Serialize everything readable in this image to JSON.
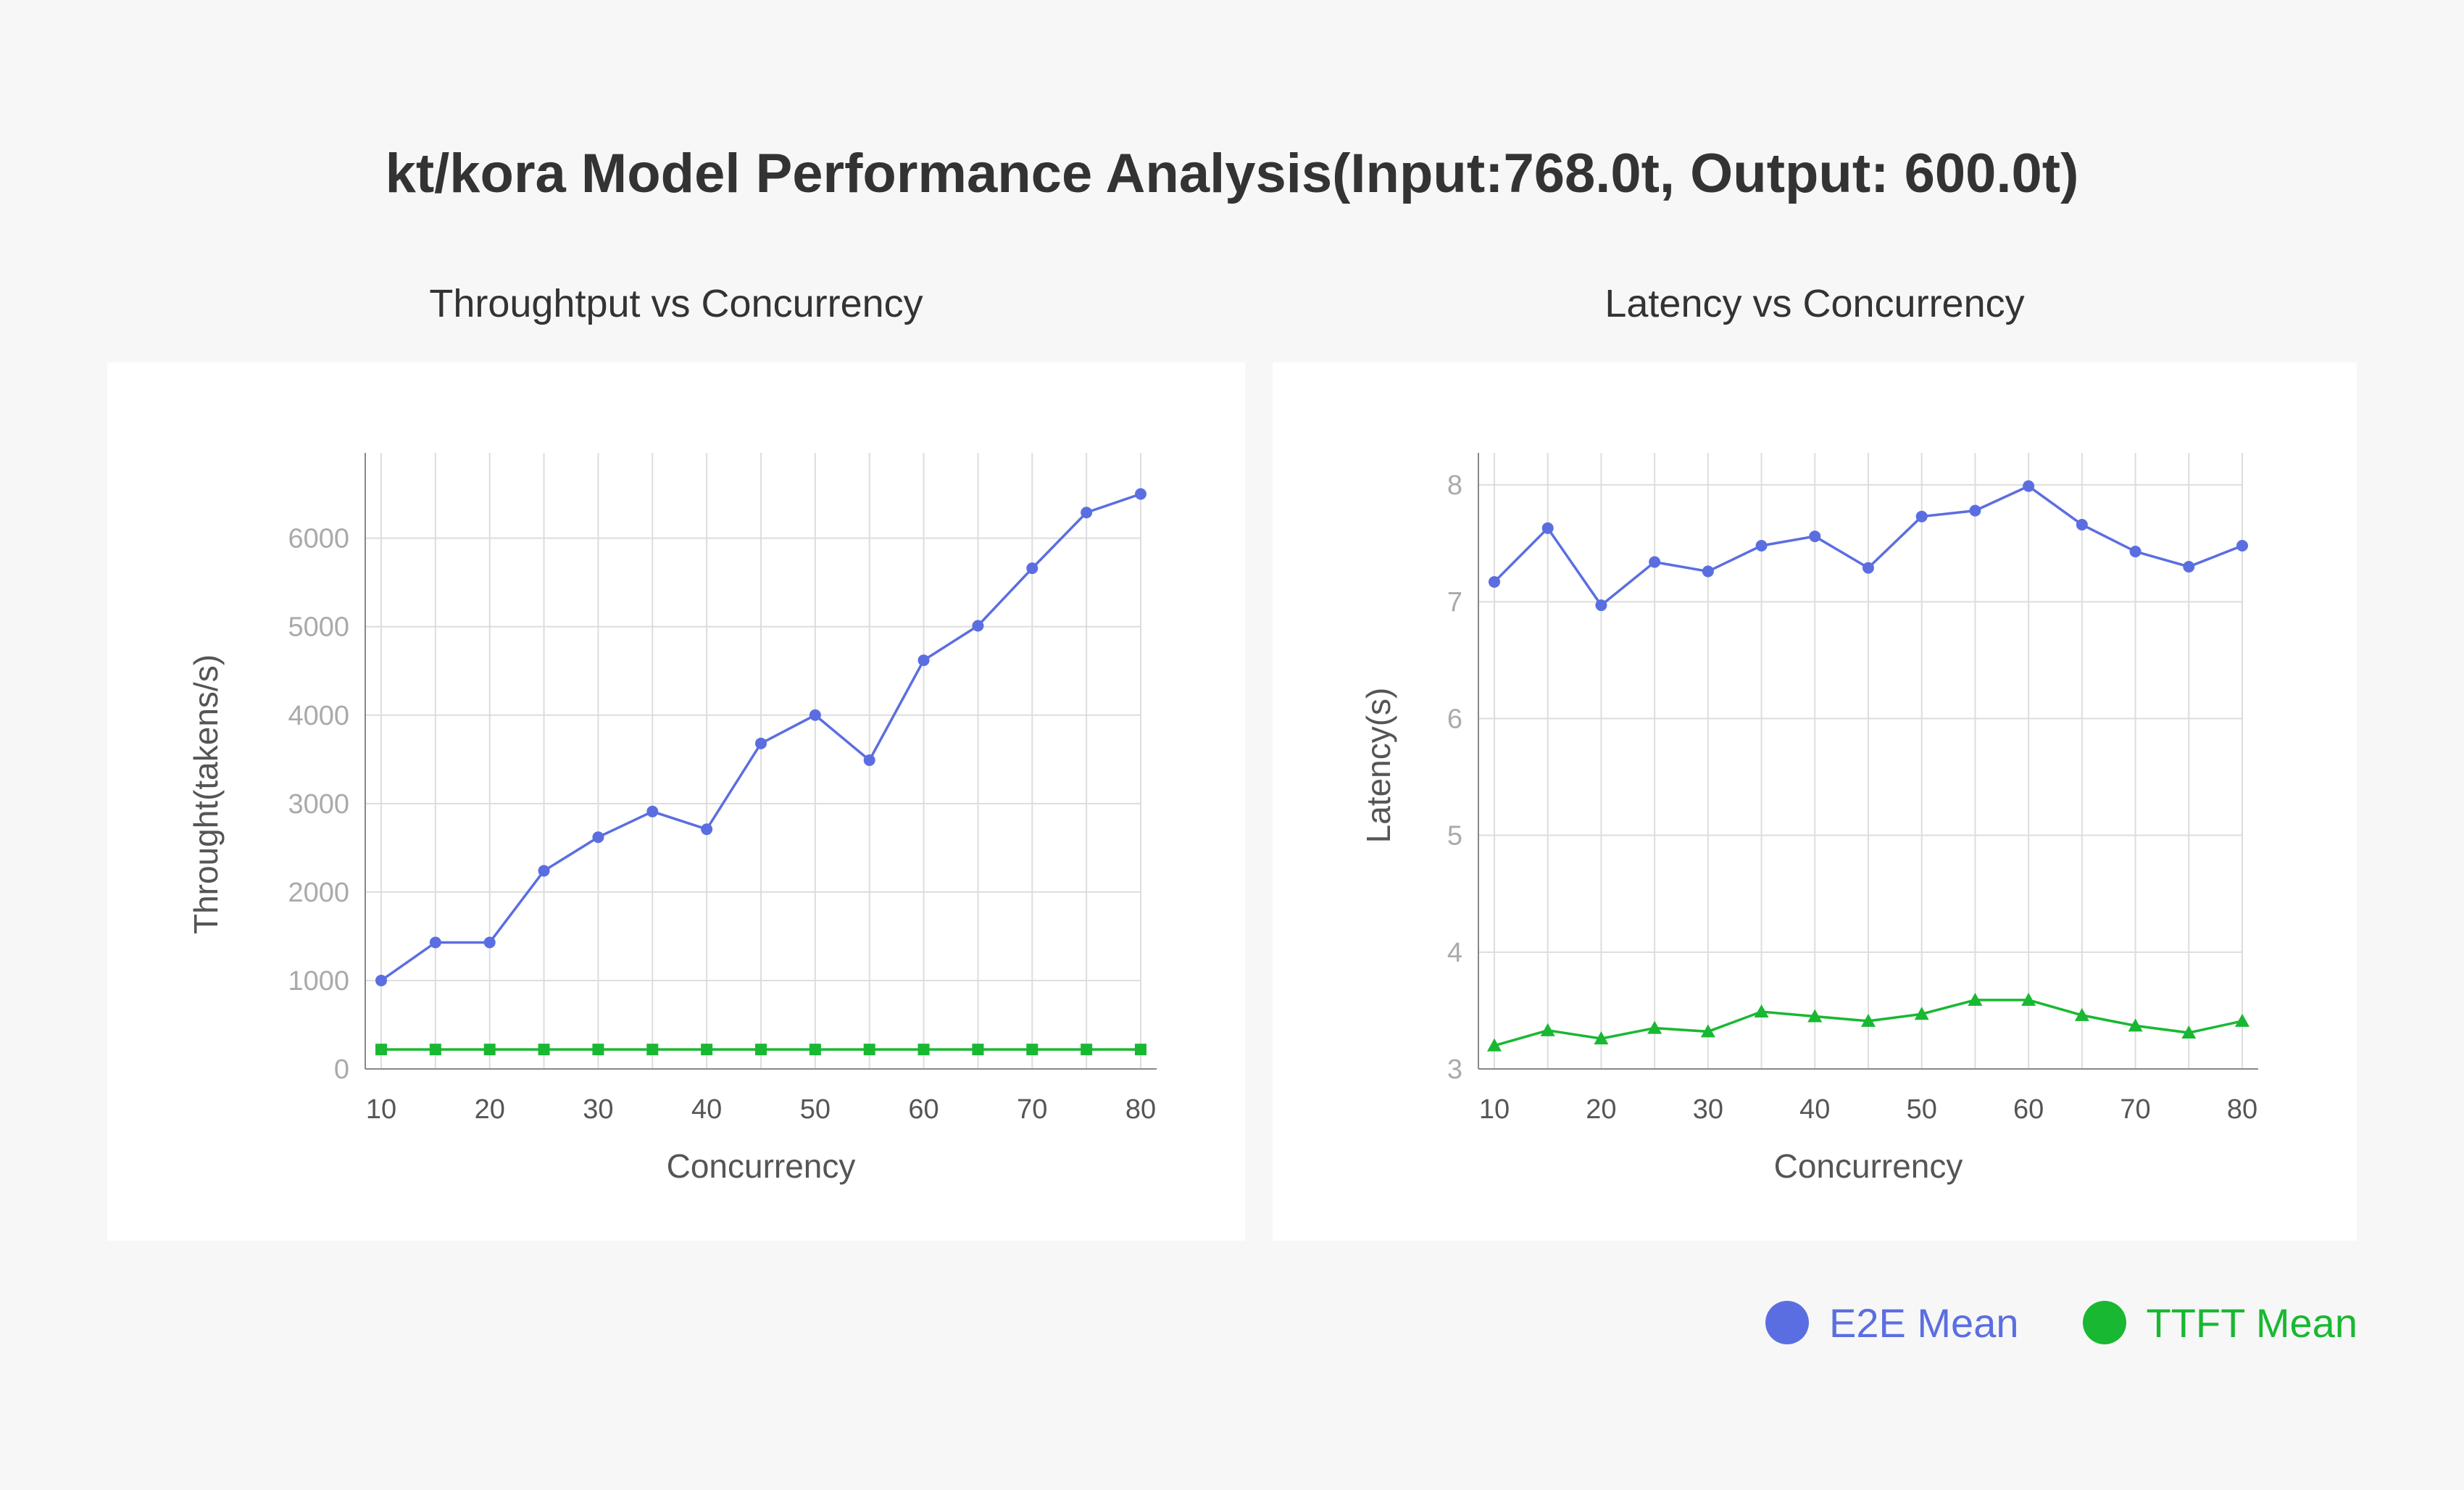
{
  "title": "kt/kora Model Performance Analysis(Input:768.0t, Output: 600.0t)",
  "colors": {
    "e2e": "#5b6ee1",
    "ttft": "#19b832"
  },
  "legend": [
    {
      "label": "E2E Mean",
      "color": "#5b6ee1"
    },
    {
      "label": "TTFT Mean",
      "color": "#19b832"
    }
  ],
  "chart_data": [
    {
      "type": "line",
      "title": "Throughtput vs Concurrency",
      "xlabel": "Concurrency",
      "ylabel": "Throught(takens/s)",
      "x": [
        10,
        15,
        20,
        25,
        30,
        35,
        40,
        45,
        50,
        55,
        60,
        65,
        70,
        75,
        80
      ],
      "xticks": [
        10,
        20,
        30,
        40,
        50,
        60,
        70,
        80
      ],
      "yticks": [
        0,
        1000,
        2000,
        3000,
        4000,
        5000,
        6000
      ],
      "ylim": [
        0,
        6800
      ],
      "grid": true,
      "series": [
        {
          "name": "E2E Mean",
          "marker": "circle",
          "color": "#5b6ee1",
          "values": [
            1000,
            1430,
            1430,
            2240,
            2620,
            2910,
            2710,
            3680,
            4000,
            3490,
            4620,
            5010,
            5660,
            6290,
            6500
          ]
        },
        {
          "name": "TTFT Mean",
          "marker": "square",
          "color": "#19b832",
          "values": [
            220,
            220,
            220,
            220,
            220,
            220,
            220,
            220,
            220,
            220,
            220,
            220,
            220,
            220,
            220
          ]
        }
      ]
    },
    {
      "type": "line",
      "title": "Latency vs Concurrency",
      "xlabel": "Concurrency",
      "ylabel": "Latency(s)",
      "x": [
        10,
        15,
        20,
        25,
        30,
        35,
        40,
        45,
        50,
        55,
        60,
        65,
        70,
        75,
        80
      ],
      "xticks": [
        10,
        20,
        30,
        40,
        50,
        60,
        70,
        80
      ],
      "yticks": [
        3,
        4,
        5,
        6,
        7,
        8
      ],
      "ylim": [
        3,
        8.15
      ],
      "grid": true,
      "series": [
        {
          "name": "E2E Mean",
          "marker": "circle",
          "color": "#5b6ee1",
          "values": [
            7.17,
            7.63,
            6.97,
            7.34,
            7.26,
            7.48,
            7.56,
            7.29,
            7.73,
            7.78,
            7.99,
            7.66,
            7.43,
            7.3,
            7.48
          ]
        },
        {
          "name": "TTFT Mean",
          "marker": "triangle",
          "color": "#19b832",
          "values": [
            3.2,
            3.33,
            3.26,
            3.35,
            3.32,
            3.49,
            3.45,
            3.41,
            3.47,
            3.59,
            3.59,
            3.46,
            3.37,
            3.31,
            3.41
          ]
        }
      ]
    }
  ]
}
